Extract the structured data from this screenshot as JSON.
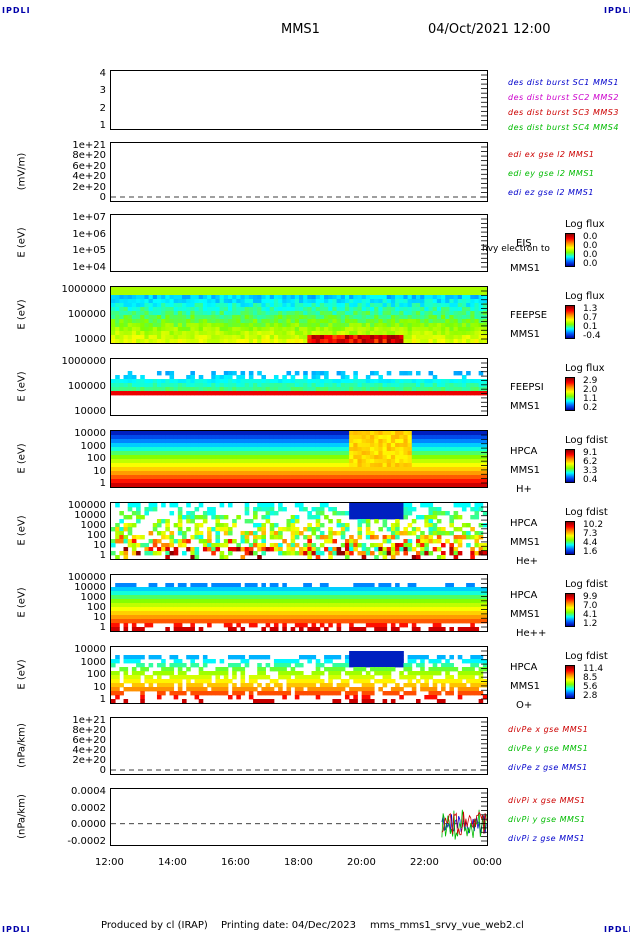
{
  "corners": {
    "tl": "IPDLI",
    "tr": "IPDLI",
    "bl": "IPDLI",
    "br": "IPDLI"
  },
  "header": {
    "spacecraft": "MMS1",
    "datetime": "04/Oct/2021 12:00"
  },
  "footer": {
    "produced": "Produced by cl (IRAP)",
    "printing": "Printing date: 04/Dec/2023",
    "script": "mms_mms1_srvy_vue_web2.cl"
  },
  "x_ticks": [
    "12:00",
    "14:00",
    "16:00",
    "18:00",
    "20:00",
    "22:00",
    "00:00"
  ],
  "chart_data": [
    {
      "type": "line",
      "ylabel": "",
      "yticks": [
        "4",
        "3",
        "2",
        "1"
      ],
      "legend": [
        {
          "text": "des dist burst SC1 MMS1",
          "color": "#0000cc"
        },
        {
          "text": "des dist burst SC2 MMS2",
          "color": "#cc00cc"
        },
        {
          "text": "des dist burst SC3 MMS3",
          "color": "#cc0000"
        },
        {
          "text": "des dist burst SC4 MMS4",
          "color": "#00bb00"
        }
      ]
    },
    {
      "type": "line",
      "ylabel": "(mV/m)",
      "yticks": [
        "1e+21",
        "8e+20",
        "6e+20",
        "4e+20",
        "2e+20",
        "0"
      ],
      "legend": [
        {
          "text": "edi ex gse l2 MMS1",
          "color": "#cc0000"
        },
        {
          "text": "edi ey gse l2 MMS1",
          "color": "#00bb00"
        },
        {
          "text": "edi ez gse l2 MMS1",
          "color": "#0000cc"
        }
      ]
    },
    {
      "type": "heatmap",
      "ylabel": "E (eV)",
      "yticks": [
        "1e+07",
        "1e+06",
        "1e+05",
        "1e+04"
      ],
      "instrument": [
        "EIS",
        "MMS1"
      ],
      "overlay": "hvy electron to",
      "cbar_title": "Log flux",
      "cbar_values": [
        "0.0",
        "0.0",
        "0.0",
        "0.0"
      ]
    },
    {
      "type": "heatmap",
      "ylabel": "E (eV)",
      "yticks": [
        "1000000",
        "100000",
        "10000"
      ],
      "instrument": [
        "FEEPSE",
        "MMS1"
      ],
      "cbar_title": "Log flux",
      "cbar_values": [
        "1.3",
        "0.7",
        "0.1",
        "-0.4"
      ]
    },
    {
      "type": "heatmap",
      "ylabel": "E (eV)",
      "yticks": [
        "1000000",
        "100000",
        "10000"
      ],
      "instrument": [
        "FEEPSI",
        "MMS1"
      ],
      "cbar_title": "Log flux",
      "cbar_values": [
        "2.9",
        "2.0",
        "1.1",
        "0.2"
      ]
    },
    {
      "type": "heatmap",
      "ylabel": "E (eV)",
      "yticks": [
        "10000",
        "1000",
        "100",
        "10",
        "1"
      ],
      "instrument": [
        "HPCA",
        "MMS1",
        "H+"
      ],
      "cbar_title": "Log fdist",
      "cbar_values": [
        "9.1",
        "6.2",
        "3.3",
        "0.4"
      ]
    },
    {
      "type": "heatmap",
      "ylabel": "E (eV)",
      "yticks": [
        "100000",
        "10000",
        "1000",
        "100",
        "10",
        "1"
      ],
      "instrument": [
        "HPCA",
        "MMS1",
        "He+"
      ],
      "cbar_title": "Log fdist",
      "cbar_values": [
        "10.2",
        "7.3",
        "4.4",
        "1.6"
      ]
    },
    {
      "type": "heatmap",
      "ylabel": "E (eV)",
      "yticks": [
        "100000",
        "10000",
        "1000",
        "100",
        "10",
        "1"
      ],
      "instrument": [
        "HPCA",
        "MMS1",
        "He++"
      ],
      "cbar_title": "Log fdist",
      "cbar_values": [
        "9.9",
        "7.0",
        "4.1",
        "1.2"
      ]
    },
    {
      "type": "heatmap",
      "ylabel": "E (eV)",
      "yticks": [
        "10000",
        "1000",
        "100",
        "10",
        "1"
      ],
      "instrument": [
        "HPCA",
        "MMS1",
        "O+"
      ],
      "cbar_title": "Log fdist",
      "cbar_values": [
        "11.4",
        "8.5",
        "5.6",
        "2.8"
      ]
    },
    {
      "type": "line",
      "ylabel": "(nPa/km)",
      "yticks": [
        "1e+21",
        "8e+20",
        "6e+20",
        "4e+20",
        "2e+20",
        "0"
      ],
      "legend": [
        {
          "text": "divPe x gse MMS1",
          "color": "#cc0000"
        },
        {
          "text": "divPe y gse MMS1",
          "color": "#00bb00"
        },
        {
          "text": "divPe z gse MMS1",
          "color": "#0000cc"
        }
      ]
    },
    {
      "type": "line",
      "ylabel": "(nPa/km)",
      "yticks": [
        "0.0004",
        "0.0002",
        "0.0000",
        "-0.0002"
      ],
      "legend": [
        {
          "text": "divPi x gse MMS1",
          "color": "#cc0000"
        },
        {
          "text": "divPi y gse MMS1",
          "color": "#00bb00"
        },
        {
          "text": "divPi z gse MMS1",
          "color": "#0000cc"
        }
      ]
    }
  ]
}
